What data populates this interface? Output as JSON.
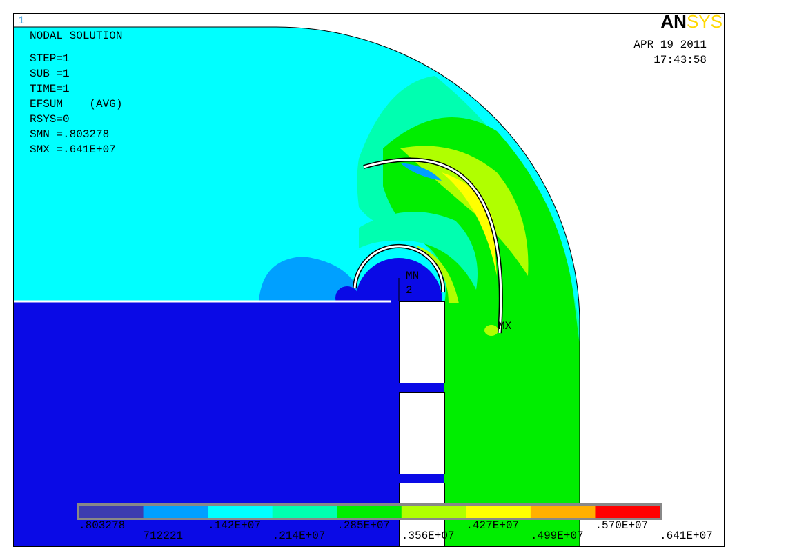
{
  "window_number": "1",
  "title": "NODAL SOLUTION",
  "info": [
    "STEP=1",
    "SUB =1",
    "TIME=1",
    "EFSUM    (AVG)",
    "RSYS=0",
    "SMN =.803278",
    "SMX =.641E+07"
  ],
  "date": "APR 19 2011",
  "time": "17:43:58",
  "logo": [
    "AN",
    "SYS"
  ],
  "markers": {
    "min": "MN",
    "node": "2",
    "max": "MX"
  },
  "legend": {
    "colors": [
      "#3c3cb0",
      "#00a0ff",
      "#00ffff",
      "#00ffb0",
      "#00ee00",
      "#b0ff00",
      "#ffff00",
      "#ffb000",
      "#ff0000"
    ],
    "labels": [
      ".803278",
      "712221",
      ".142E+07",
      ".214E+07",
      ".285E+07",
      ".356E+07",
      ".427E+07",
      ".499E+07",
      ".570E+07",
      ".641E+07"
    ]
  }
}
